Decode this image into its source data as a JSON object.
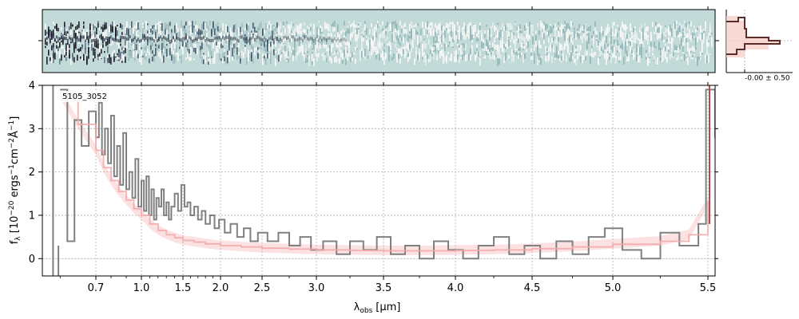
{
  "chart_data": {
    "type": "line",
    "title": "",
    "annotation": "5105_3052",
    "xlabel_main": "λ",
    "xlabel_sub": "obs",
    "xlabel_unit": "[μm]",
    "ylabel": "f_λ [10^-20 ergs^-1cm^-2Å^-1]",
    "ylabel_parts": {
      "a": "f",
      "a_sub": "λ",
      "b": " [10",
      "b_sup": "−20",
      "c": " ergs",
      "c_sup": "−1",
      "d": "cm",
      "d_sup": "−2",
      "e": "Å",
      "e_sup": "−1",
      "f": "]"
    },
    "x_scale": "nonlinear (dispersion-scaled)",
    "xlim": [
      0.55,
      5.52
    ],
    "ylim": [
      -0.4,
      4.0
    ],
    "x_ticks": [
      {
        "v": 0.7,
        "label": "0.7"
      },
      {
        "v": 1.0,
        "label": "1.0"
      },
      {
        "v": 1.5,
        "label": "1.5"
      },
      {
        "v": 2.0,
        "label": "2.0"
      },
      {
        "v": 2.5,
        "label": "2.5"
      },
      {
        "v": 3.0,
        "label": "3.0"
      },
      {
        "v": 3.5,
        "label": "3.5"
      },
      {
        "v": 4.0,
        "label": "4.0"
      },
      {
        "v": 4.5,
        "label": "4.5"
      },
      {
        "v": 5.0,
        "label": "5.0"
      },
      {
        "v": 5.5,
        "label": "5.5"
      }
    ],
    "y_ticks": [
      {
        "v": 0,
        "label": "0"
      },
      {
        "v": 1,
        "label": "1"
      },
      {
        "v": 2,
        "label": "2"
      },
      {
        "v": 3,
        "label": "3"
      },
      {
        "v": 4,
        "label": "4"
      }
    ],
    "grid": true,
    "series": [
      {
        "role": "spectrum",
        "color": "#808080",
        "style": "steps",
        "points": [
          [
            0.6,
            3.9
          ],
          [
            0.62,
            0.4
          ],
          [
            0.64,
            3.2
          ],
          [
            0.66,
            2.6
          ],
          [
            0.68,
            3.4
          ],
          [
            0.7,
            2.8
          ],
          [
            0.72,
            3.6
          ],
          [
            0.74,
            2.4
          ],
          [
            0.76,
            3.0
          ],
          [
            0.78,
            2.2
          ],
          [
            0.8,
            3.3
          ],
          [
            0.82,
            1.9
          ],
          [
            0.84,
            2.6
          ],
          [
            0.86,
            1.7
          ],
          [
            0.88,
            2.9
          ],
          [
            0.9,
            1.6
          ],
          [
            0.92,
            2.0
          ],
          [
            0.94,
            1.4
          ],
          [
            0.96,
            2.3
          ],
          [
            0.98,
            1.2
          ],
          [
            1.0,
            1.8
          ],
          [
            1.03,
            1.1
          ],
          [
            1.06,
            1.9
          ],
          [
            1.09,
            1.0
          ],
          [
            1.12,
            1.6
          ],
          [
            1.15,
            0.9
          ],
          [
            1.18,
            1.4
          ],
          [
            1.21,
            1.2
          ],
          [
            1.24,
            1.6
          ],
          [
            1.27,
            1.0
          ],
          [
            1.3,
            1.3
          ],
          [
            1.33,
            0.9
          ],
          [
            1.36,
            1.2
          ],
          [
            1.4,
            1.5
          ],
          [
            1.44,
            1.1
          ],
          [
            1.48,
            1.7
          ],
          [
            1.52,
            1.2
          ],
          [
            1.56,
            1.3
          ],
          [
            1.6,
            1.0
          ],
          [
            1.65,
            1.2
          ],
          [
            1.7,
            0.9
          ],
          [
            1.75,
            1.1
          ],
          [
            1.8,
            0.8
          ],
          [
            1.86,
            1.0
          ],
          [
            1.92,
            0.7
          ],
          [
            1.98,
            0.9
          ],
          [
            2.05,
            0.6
          ],
          [
            2.12,
            0.8
          ],
          [
            2.2,
            0.5
          ],
          [
            2.28,
            0.7
          ],
          [
            2.36,
            0.4
          ],
          [
            2.45,
            0.6
          ],
          [
            2.55,
            0.4
          ],
          [
            2.65,
            0.6
          ],
          [
            2.75,
            0.3
          ],
          [
            2.85,
            0.5
          ],
          [
            2.95,
            0.2
          ],
          [
            3.05,
            0.4
          ],
          [
            3.15,
            0.1
          ],
          [
            3.25,
            0.4
          ],
          [
            3.35,
            0.2
          ],
          [
            3.45,
            0.5
          ],
          [
            3.55,
            0.1
          ],
          [
            3.65,
            0.3
          ],
          [
            3.75,
            0.0
          ],
          [
            3.85,
            0.4
          ],
          [
            3.95,
            0.2
          ],
          [
            4.05,
            0.0
          ],
          [
            4.15,
            0.3
          ],
          [
            4.25,
            0.5
          ],
          [
            4.35,
            0.1
          ],
          [
            4.45,
            0.3
          ],
          [
            4.55,
            0.0
          ],
          [
            4.65,
            0.4
          ],
          [
            4.75,
            0.1
          ],
          [
            4.85,
            0.5
          ],
          [
            4.95,
            0.7
          ],
          [
            5.05,
            0.2
          ],
          [
            5.15,
            0.0
          ],
          [
            5.25,
            0.6
          ],
          [
            5.35,
            0.3
          ],
          [
            5.45,
            0.8
          ],
          [
            5.49,
            3.9
          ],
          [
            5.52,
            2.8
          ]
        ]
      },
      {
        "role": "model",
        "color": "#f4a8a8",
        "style": "steps",
        "points": [
          [
            0.6,
            3.8
          ],
          [
            0.65,
            3.1
          ],
          [
            0.7,
            2.5
          ],
          [
            0.75,
            2.1
          ],
          [
            0.8,
            1.8
          ],
          [
            0.85,
            1.55
          ],
          [
            0.9,
            1.35
          ],
          [
            0.95,
            1.15
          ],
          [
            1.0,
            1.0
          ],
          [
            1.1,
            0.8
          ],
          [
            1.2,
            0.65
          ],
          [
            1.3,
            0.55
          ],
          [
            1.4,
            0.48
          ],
          [
            1.5,
            0.42
          ],
          [
            1.65,
            0.38
          ],
          [
            1.8,
            0.34
          ],
          [
            2.0,
            0.3
          ],
          [
            2.25,
            0.27
          ],
          [
            2.5,
            0.24
          ],
          [
            2.75,
            0.22
          ],
          [
            3.0,
            0.2
          ],
          [
            3.25,
            0.19
          ],
          [
            3.5,
            0.18
          ],
          [
            3.75,
            0.18
          ],
          [
            4.0,
            0.19
          ],
          [
            4.25,
            0.2
          ],
          [
            4.5,
            0.23
          ],
          [
            4.75,
            0.27
          ],
          [
            5.0,
            0.33
          ],
          [
            5.25,
            0.4
          ],
          [
            5.4,
            0.55
          ],
          [
            5.5,
            1.3
          ]
        ]
      }
    ],
    "profile_panel": {
      "label": "-0.00 ± 0.50",
      "profile_color": "#5b2d2a",
      "fill_color": "#f8d0c8"
    },
    "twod_panel": {
      "background": "#c2dad8",
      "trace_color": "#1a2030"
    }
  }
}
